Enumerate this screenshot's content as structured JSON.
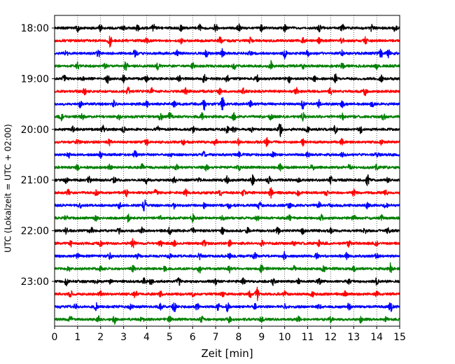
{
  "chart_data": {
    "type": "line",
    "title": "",
    "xlabel": "Zeit  [min]",
    "ylabel": "UTC (Lokalzeit = UTC + 02:00)",
    "xlim": [
      0,
      15
    ],
    "x_ticks": [
      "0",
      "1",
      "2",
      "3",
      "4",
      "5",
      "6",
      "7",
      "8",
      "9",
      "10",
      "11",
      "12",
      "13",
      "14",
      "15"
    ],
    "y_ticks": [
      "18:00",
      "19:00",
      "20:00",
      "21:00",
      "22:00",
      "23:00"
    ],
    "grid": "vertical dotted lines at each minute",
    "trace_interval_min": 15,
    "colors": [
      "#000000",
      "#ff0000",
      "#0000ff",
      "#008000"
    ],
    "traces": [
      {
        "start": "18:00",
        "color": "#000000",
        "events": [
          [
            1.0,
            0.5
          ],
          [
            2.0,
            0.5
          ],
          [
            3.0,
            0.4
          ],
          [
            3.6,
            0.4
          ],
          [
            4.3,
            0.5
          ],
          [
            5.5,
            0.4
          ],
          [
            6.3,
            0.5
          ],
          [
            7.0,
            0.6
          ],
          [
            8.0,
            0.6
          ],
          [
            9.0,
            0.5
          ],
          [
            10.0,
            0.5
          ],
          [
            11.5,
            0.5
          ],
          [
            12.5,
            0.6
          ],
          [
            13.8,
            0.5
          ],
          [
            14.8,
            0.5
          ]
        ]
      },
      {
        "start": "18:15",
        "color": "#ff0000",
        "events": [
          [
            2.4,
            0.9
          ],
          [
            4.0,
            0.4
          ],
          [
            5.5,
            0.5
          ],
          [
            7.2,
            0.6
          ],
          [
            8.5,
            0.5
          ],
          [
            10.8,
            0.6
          ],
          [
            11.5,
            0.4
          ],
          [
            12.5,
            0.5
          ],
          [
            13.5,
            0.5
          ]
        ]
      },
      {
        "start": "18:30",
        "color": "#0000ff",
        "events": [
          [
            0.5,
            0.4
          ],
          [
            1.9,
            0.5
          ],
          [
            3.5,
            0.5
          ],
          [
            5.3,
            0.4
          ],
          [
            6.6,
            0.5
          ],
          [
            7.3,
            0.6
          ],
          [
            8.5,
            0.4
          ],
          [
            10.0,
            0.7
          ],
          [
            11.0,
            0.5
          ],
          [
            12.5,
            0.4
          ],
          [
            14.2,
            0.8
          ],
          [
            14.5,
            0.6
          ]
        ]
      },
      {
        "start": "18:45",
        "color": "#008000",
        "events": [
          [
            1.0,
            0.5
          ],
          [
            2.2,
            0.4
          ],
          [
            3.1,
            0.8
          ],
          [
            4.5,
            0.6
          ],
          [
            6.0,
            0.4
          ],
          [
            7.8,
            0.5
          ],
          [
            9.4,
            0.7
          ],
          [
            10.8,
            0.5
          ],
          [
            12.5,
            0.5
          ],
          [
            14.0,
            0.4
          ]
        ]
      },
      {
        "start": "19:00",
        "color": "#000000",
        "events": [
          [
            0.4,
            0.6
          ],
          [
            1.2,
            0.5
          ],
          [
            2.3,
            0.6
          ],
          [
            3.0,
            0.5
          ],
          [
            4.0,
            0.4
          ],
          [
            5.4,
            0.5
          ],
          [
            6.5,
            0.6
          ],
          [
            7.5,
            0.5
          ],
          [
            8.8,
            0.5
          ],
          [
            10.2,
            0.5
          ],
          [
            11.3,
            0.4
          ],
          [
            12.2,
            0.7
          ],
          [
            14.2,
            0.5
          ]
        ]
      },
      {
        "start": "19:15",
        "color": "#ff0000",
        "events": [
          [
            1.3,
            0.4
          ],
          [
            3.2,
            0.5
          ],
          [
            4.2,
            0.6
          ],
          [
            5.7,
            0.5
          ],
          [
            7.2,
            0.5
          ],
          [
            8.2,
            0.4
          ],
          [
            10.5,
            0.5
          ],
          [
            12.0,
            0.5
          ],
          [
            13.5,
            0.6
          ]
        ]
      },
      {
        "start": "19:30",
        "color": "#0000ff",
        "events": [
          [
            1.1,
            0.5
          ],
          [
            2.6,
            0.5
          ],
          [
            4.0,
            0.5
          ],
          [
            5.2,
            0.4
          ],
          [
            6.5,
            0.8
          ],
          [
            7.3,
            1.0
          ],
          [
            8.5,
            0.5
          ],
          [
            10.8,
            0.8
          ],
          [
            11.5,
            0.5
          ],
          [
            12.5,
            0.5
          ],
          [
            13.8,
            0.4
          ]
        ]
      },
      {
        "start": "19:45",
        "color": "#008000",
        "events": [
          [
            0.3,
            0.6
          ],
          [
            1.2,
            0.5
          ],
          [
            2.8,
            0.4
          ],
          [
            4.6,
            0.6
          ],
          [
            5.0,
            0.8
          ],
          [
            6.4,
            0.5
          ],
          [
            7.8,
            0.6
          ],
          [
            9.4,
            0.5
          ],
          [
            10.8,
            0.6
          ],
          [
            12.5,
            0.5
          ],
          [
            14.3,
            0.5
          ]
        ]
      },
      {
        "start": "20:00",
        "color": "#000000",
        "events": [
          [
            0.8,
            0.5
          ],
          [
            2.1,
            0.6
          ],
          [
            3.0,
            0.4
          ],
          [
            4.5,
            0.5
          ],
          [
            6.0,
            0.5
          ],
          [
            7.5,
            0.6
          ],
          [
            7.8,
            0.5
          ],
          [
            8.6,
            0.4
          ],
          [
            9.8,
            1.0
          ],
          [
            11.0,
            0.5
          ],
          [
            12.2,
            0.7
          ],
          [
            13.3,
            0.5
          ]
        ]
      },
      {
        "start": "20:15",
        "color": "#ff0000",
        "events": [
          [
            1.0,
            0.4
          ],
          [
            2.4,
            0.5
          ],
          [
            4.0,
            0.5
          ],
          [
            5.6,
            0.4
          ],
          [
            7.0,
            0.5
          ],
          [
            8.0,
            0.4
          ],
          [
            9.2,
            0.8
          ],
          [
            10.8,
            0.5
          ],
          [
            12.5,
            0.5
          ],
          [
            14.2,
            0.4
          ]
        ]
      },
      {
        "start": "20:30",
        "color": "#0000ff",
        "events": [
          [
            0.6,
            0.4
          ],
          [
            2.0,
            0.4
          ],
          [
            3.5,
            0.5
          ],
          [
            5.0,
            0.4
          ],
          [
            6.5,
            0.4
          ],
          [
            8.0,
            0.4
          ],
          [
            9.5,
            0.4
          ],
          [
            11.0,
            0.4
          ],
          [
            12.5,
            0.4
          ],
          [
            14.0,
            0.4
          ]
        ]
      },
      {
        "start": "20:45",
        "color": "#008000",
        "events": [
          [
            1.0,
            0.4
          ],
          [
            2.4,
            0.4
          ],
          [
            3.8,
            0.5
          ],
          [
            5.3,
            0.4
          ],
          [
            6.6,
            0.5
          ],
          [
            8.0,
            0.4
          ],
          [
            9.8,
            0.5
          ],
          [
            11.2,
            0.4
          ],
          [
            12.8,
            0.4
          ],
          [
            14.0,
            0.4
          ]
        ]
      },
      {
        "start": "21:00",
        "color": "#000000",
        "events": [
          [
            0.5,
            0.4
          ],
          [
            1.5,
            0.5
          ],
          [
            2.6,
            0.4
          ],
          [
            4.0,
            0.5
          ],
          [
            5.2,
            0.5
          ],
          [
            6.3,
            0.4
          ],
          [
            7.5,
            0.5
          ],
          [
            8.6,
            0.8
          ],
          [
            9.3,
            0.6
          ],
          [
            10.6,
            0.4
          ],
          [
            12.0,
            0.5
          ],
          [
            13.6,
            0.8
          ],
          [
            14.5,
            0.4
          ]
        ]
      },
      {
        "start": "21:15",
        "color": "#ff0000",
        "events": [
          [
            0.6,
            0.4
          ],
          [
            1.8,
            0.4
          ],
          [
            3.1,
            0.6
          ],
          [
            4.4,
            0.5
          ],
          [
            5.7,
            0.6
          ],
          [
            7.2,
            0.5
          ],
          [
            8.2,
            0.4
          ],
          [
            9.4,
            0.7
          ],
          [
            10.6,
            0.4
          ],
          [
            11.8,
            0.5
          ],
          [
            13.0,
            0.5
          ],
          [
            14.4,
            0.4
          ]
        ]
      },
      {
        "start": "21:30",
        "color": "#0000ff",
        "events": [
          [
            1.1,
            0.4
          ],
          [
            2.8,
            0.5
          ],
          [
            3.9,
            1.0
          ],
          [
            5.2,
            0.4
          ],
          [
            6.5,
            0.4
          ],
          [
            7.6,
            0.5
          ],
          [
            8.9,
            0.6
          ],
          [
            10.2,
            0.4
          ],
          [
            11.5,
            0.5
          ],
          [
            12.0,
            0.4
          ],
          [
            13.6,
            0.6
          ],
          [
            14.4,
            0.4
          ]
        ]
      },
      {
        "start": "21:45",
        "color": "#008000",
        "events": [
          [
            0.5,
            0.4
          ],
          [
            1.8,
            0.4
          ],
          [
            3.2,
            0.5
          ],
          [
            4.6,
            0.4
          ],
          [
            6.0,
            0.5
          ],
          [
            7.3,
            0.4
          ],
          [
            8.8,
            0.4
          ],
          [
            10.2,
            0.4
          ],
          [
            11.6,
            0.5
          ],
          [
            13.0,
            0.5
          ],
          [
            14.2,
            0.4
          ]
        ]
      },
      {
        "start": "22:00",
        "color": "#000000",
        "events": [
          [
            0.5,
            0.4
          ],
          [
            1.6,
            0.5
          ],
          [
            2.8,
            0.4
          ],
          [
            3.8,
            0.6
          ],
          [
            5.0,
            0.5
          ],
          [
            6.0,
            0.4
          ],
          [
            7.3,
            0.5
          ],
          [
            8.4,
            0.4
          ],
          [
            9.7,
            0.5
          ],
          [
            10.8,
            0.5
          ],
          [
            12.0,
            0.4
          ],
          [
            13.5,
            0.5
          ],
          [
            14.5,
            0.4
          ]
        ]
      },
      {
        "start": "22:15",
        "color": "#ff0000",
        "events": [
          [
            0.7,
            0.4
          ],
          [
            2.0,
            0.4
          ],
          [
            3.4,
            0.7
          ],
          [
            4.6,
            0.5
          ],
          [
            5.2,
            0.5
          ],
          [
            6.5,
            0.4
          ],
          [
            7.6,
            0.5
          ],
          [
            9.0,
            0.4
          ],
          [
            10.4,
            0.5
          ],
          [
            11.5,
            0.4
          ],
          [
            12.8,
            0.5
          ],
          [
            14.0,
            0.4
          ]
        ]
      },
      {
        "start": "22:30",
        "color": "#0000ff",
        "events": [
          [
            1.0,
            0.4
          ],
          [
            2.4,
            0.4
          ],
          [
            3.6,
            0.4
          ],
          [
            5.0,
            0.4
          ],
          [
            6.3,
            0.4
          ],
          [
            7.6,
            0.4
          ],
          [
            8.7,
            0.4
          ],
          [
            10.0,
            0.6
          ],
          [
            11.4,
            0.4
          ],
          [
            12.7,
            0.4
          ],
          [
            14.0,
            0.4
          ]
        ]
      },
      {
        "start": "22:45",
        "color": "#008000",
        "events": [
          [
            0.6,
            0.4
          ],
          [
            2.0,
            0.4
          ],
          [
            3.4,
            0.4
          ],
          [
            4.8,
            0.4
          ],
          [
            6.3,
            0.6
          ],
          [
            7.6,
            0.5
          ],
          [
            9.0,
            0.6
          ],
          [
            10.4,
            0.4
          ],
          [
            11.7,
            0.5
          ],
          [
            13.0,
            0.4
          ],
          [
            14.6,
            0.8
          ]
        ]
      },
      {
        "start": "23:00",
        "color": "#000000",
        "events": [
          [
            0.5,
            0.5
          ],
          [
            1.8,
            0.4
          ],
          [
            2.4,
            0.4
          ],
          [
            3.9,
            0.5
          ],
          [
            4.2,
            0.5
          ],
          [
            5.4,
            0.6
          ],
          [
            7.0,
            0.5
          ],
          [
            8.2,
            0.4
          ],
          [
            9.5,
            0.5
          ],
          [
            10.6,
            0.4
          ],
          [
            11.5,
            0.5
          ],
          [
            12.8,
            0.4
          ],
          [
            14.0,
            0.5
          ]
        ]
      },
      {
        "start": "23:15",
        "color": "#ff0000",
        "events": [
          [
            0.7,
            0.5
          ],
          [
            2.0,
            0.4
          ],
          [
            3.5,
            0.5
          ],
          [
            4.6,
            0.4
          ],
          [
            6.0,
            0.4
          ],
          [
            7.3,
            0.4
          ],
          [
            8.5,
            0.5
          ],
          [
            8.8,
            1.0
          ],
          [
            10.0,
            0.4
          ],
          [
            11.2,
            0.4
          ],
          [
            12.6,
            0.4
          ],
          [
            14.0,
            0.4
          ]
        ]
      },
      {
        "start": "23:30",
        "color": "#0000ff",
        "events": [
          [
            0.9,
            0.4
          ],
          [
            1.8,
            0.5
          ],
          [
            3.3,
            0.5
          ],
          [
            4.6,
            0.4
          ],
          [
            5.2,
            0.8
          ],
          [
            6.2,
            0.5
          ],
          [
            7.1,
            0.6
          ],
          [
            7.5,
            0.8
          ],
          [
            8.7,
            0.4
          ],
          [
            10.0,
            0.4
          ],
          [
            11.5,
            0.4
          ],
          [
            12.8,
            0.5
          ],
          [
            14.6,
            0.7
          ]
        ]
      },
      {
        "start": "23:45",
        "color": "#008000",
        "events": [
          [
            0.7,
            0.4
          ],
          [
            1.9,
            0.4
          ],
          [
            2.6,
            0.6
          ],
          [
            3.8,
            0.4
          ],
          [
            5.0,
            0.5
          ],
          [
            6.4,
            0.5
          ],
          [
            7.6,
            0.4
          ],
          [
            9.0,
            0.4
          ],
          [
            10.6,
            0.4
          ],
          [
            12.0,
            0.4
          ],
          [
            13.3,
            0.5
          ],
          [
            14.4,
            0.4
          ]
        ]
      }
    ]
  }
}
